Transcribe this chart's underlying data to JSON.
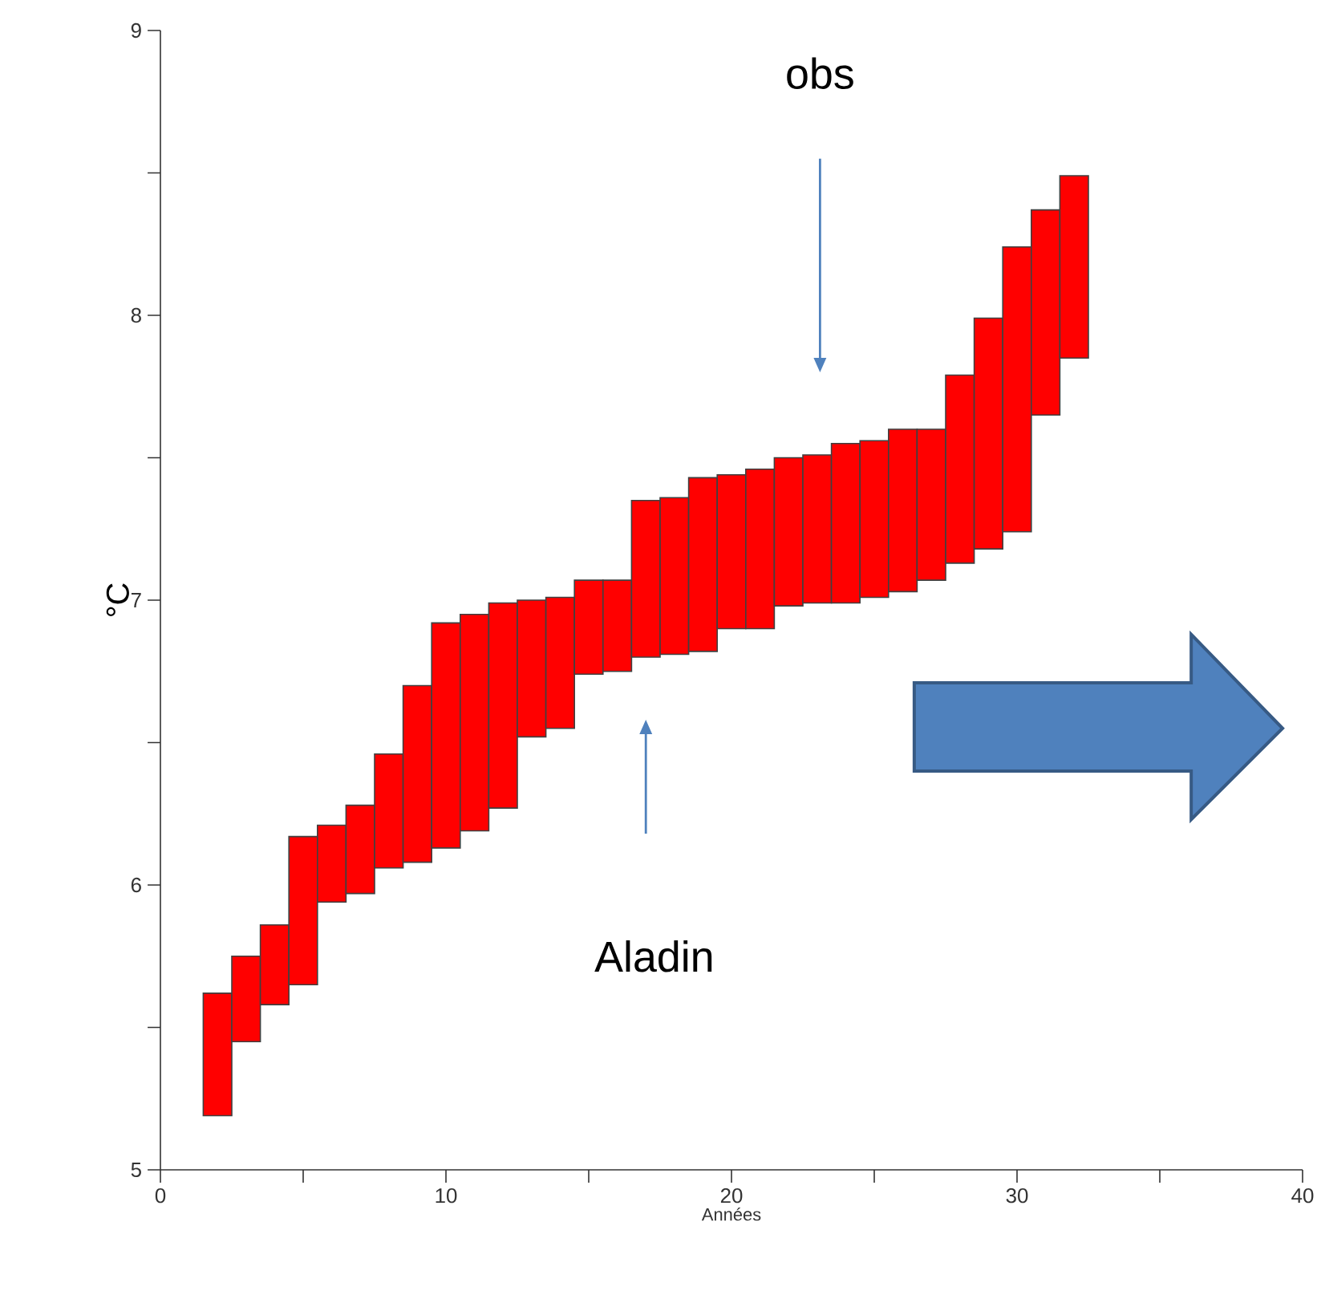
{
  "chart_data": {
    "type": "bar",
    "xlabel": "Années",
    "ylabel": "°C",
    "color": "#ff0000",
    "x": [
      2,
      3,
      4,
      5,
      6,
      7,
      8,
      9,
      10,
      11,
      12,
      13,
      14,
      15,
      16,
      17,
      18,
      19,
      20,
      21,
      22,
      23,
      24,
      25,
      26,
      27,
      28,
      29,
      30,
      31,
      32
    ],
    "base": [
      5.19,
      5.45,
      5.58,
      5.65,
      5.94,
      5.97,
      6.06,
      6.08,
      6.13,
      6.19,
      6.27,
      6.52,
      6.55,
      6.74,
      6.75,
      6.8,
      6.81,
      6.82,
      6.9,
      6.9,
      6.98,
      6.99,
      6.99,
      7.01,
      7.03,
      7.07,
      7.13,
      7.18,
      7.24,
      7.65,
      7.85
    ],
    "values": [
      0.43,
      0.3,
      0.28,
      0.52,
      0.27,
      0.31,
      0.4,
      0.62,
      0.79,
      0.76,
      0.72,
      0.48,
      0.46,
      0.33,
      0.32,
      0.55,
      0.55,
      0.61,
      0.54,
      0.56,
      0.52,
      0.52,
      0.56,
      0.55,
      0.57,
      0.53,
      0.66,
      0.81,
      1.0,
      0.72,
      0.64
    ],
    "xlim": [
      0,
      40
    ],
    "ylim": [
      5,
      9
    ],
    "xticks": [
      0,
      {
        "value": 5,
        "label": null
      },
      10,
      {
        "value": 15,
        "label": null
      },
      20,
      {
        "value": 25,
        "label": null
      },
      30,
      {
        "value": 35,
        "label": null
      },
      40
    ],
    "yticks": [
      5,
      {
        "value": 5.5,
        "label": null
      },
      6,
      {
        "value": 6.5,
        "label": null
      },
      7,
      {
        "value": 7.5,
        "label": null
      },
      8,
      {
        "value": 8.5,
        "label": null
      },
      9
    ],
    "annotations": [
      "obs",
      "Aladin"
    ]
  }
}
